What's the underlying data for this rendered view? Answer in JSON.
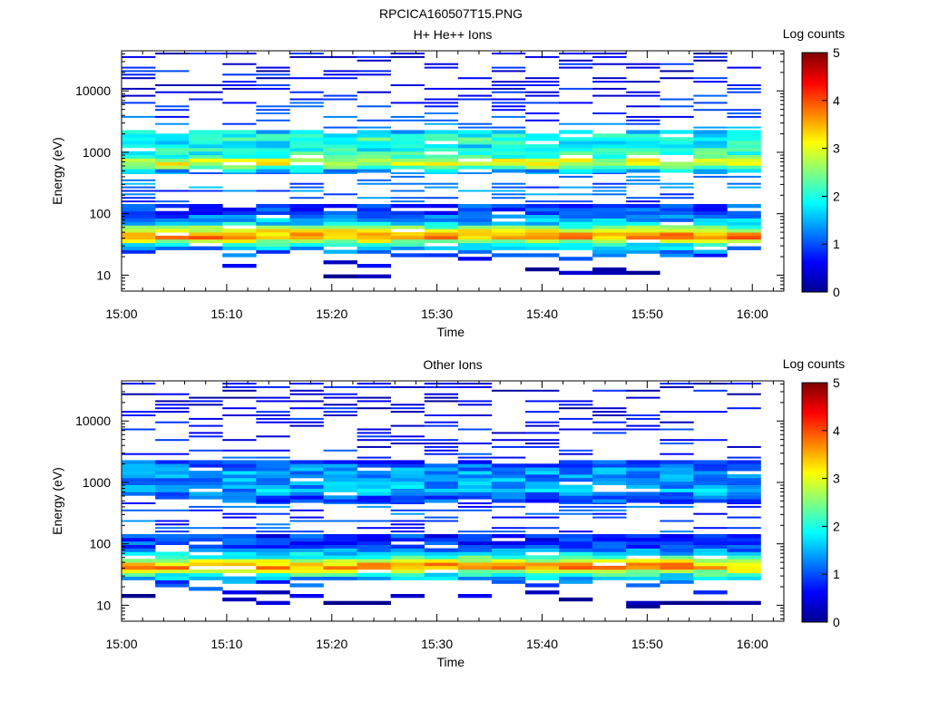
{
  "figure_title": "RPCICA160507T15.PNG",
  "colors": {
    "colormap": [
      "#00008f",
      "#0000ff",
      "#0080ff",
      "#00ffff",
      "#80ff80",
      "#ffff00",
      "#ff8000",
      "#ff0000",
      "#800000"
    ]
  },
  "chart_data": [
    {
      "type": "heatmap",
      "title": "H+ He++ Ions",
      "xlabel": "Time",
      "ylabel": "Energy (eV)",
      "x_ticks": [
        "15:00",
        "15:10",
        "15:20",
        "15:30",
        "15:40",
        "15:50",
        "16:00"
      ],
      "y_ticks": [
        "10",
        "100",
        "1000",
        "10000"
      ],
      "y_scale": "log",
      "ylim": [
        5.5,
        45000
      ],
      "x_range_minutes": [
        0,
        63
      ],
      "colorbar": {
        "label": "Log counts",
        "ticks": [
          "0",
          "1",
          "2",
          "3",
          "4",
          "5"
        ],
        "range": [
          0,
          5
        ]
      },
      "time_bins_minutes": [
        0.0,
        3.2,
        6.4,
        9.6,
        12.8,
        16.0,
        19.2,
        22.4,
        25.6,
        28.8,
        32.0,
        35.2,
        38.4,
        41.6,
        44.8,
        48.0,
        51.2,
        54.4,
        57.6
      ],
      "energy_profile": [
        {
          "e": 11,
          "v": 0
        },
        {
          "e": 25,
          "v": 1.2
        },
        {
          "e": 30,
          "v": 1.6
        },
        {
          "e": 35,
          "v": 2.6
        },
        {
          "e": 42,
          "v": 3.8
        },
        {
          "e": 50,
          "v": 3.4
        },
        {
          "e": 60,
          "v": 2.4
        },
        {
          "e": 75,
          "v": 1.5
        },
        {
          "e": 95,
          "v": 1.1
        },
        {
          "e": 120,
          "v": 0.9
        },
        {
          "e": 500,
          "v": 1.5
        },
        {
          "e": 600,
          "v": 2.6
        },
        {
          "e": 700,
          "v": 3.2
        },
        {
          "e": 850,
          "v": 2.2
        },
        {
          "e": 1400,
          "v": 1.8
        },
        {
          "e": 1700,
          "v": 2.2
        },
        {
          "e": 3000,
          "v": 0.9
        },
        {
          "e": 12000,
          "v": 0.6
        },
        {
          "e": 25000,
          "v": 0.5
        }
      ]
    },
    {
      "type": "heatmap",
      "title": "Other Ions",
      "xlabel": "Time",
      "ylabel": "Energy (eV)",
      "x_ticks": [
        "15:00",
        "15:10",
        "15:20",
        "15:30",
        "15:40",
        "15:50",
        "16:00"
      ],
      "y_ticks": [
        "10",
        "100",
        "1000",
        "10000"
      ],
      "y_scale": "log",
      "ylim": [
        5.5,
        45000
      ],
      "x_range_minutes": [
        0,
        63
      ],
      "colorbar": {
        "label": "Log counts",
        "ticks": [
          "0",
          "1",
          "2",
          "3",
          "4",
          "5"
        ],
        "range": [
          0,
          5
        ]
      },
      "time_bins_minutes": [
        0.0,
        3.2,
        6.4,
        9.6,
        12.8,
        16.0,
        19.2,
        22.4,
        25.6,
        28.8,
        32.0,
        35.2,
        38.4,
        41.6,
        44.8,
        48.0,
        51.2,
        54.4,
        57.6
      ],
      "energy_profile": [
        {
          "e": 11,
          "v": 0
        },
        {
          "e": 25,
          "v": 1.2
        },
        {
          "e": 30,
          "v": 1.7
        },
        {
          "e": 35,
          "v": 2.6
        },
        {
          "e": 42,
          "v": 3.7
        },
        {
          "e": 50,
          "v": 3.3
        },
        {
          "e": 60,
          "v": 2.2
        },
        {
          "e": 75,
          "v": 1.4
        },
        {
          "e": 95,
          "v": 1.0
        },
        {
          "e": 120,
          "v": 0.8
        },
        {
          "e": 600,
          "v": 1.1
        },
        {
          "e": 700,
          "v": 1.5
        },
        {
          "e": 1600,
          "v": 1.3
        },
        {
          "e": 3000,
          "v": 0.7
        },
        {
          "e": 22000,
          "v": 0.5
        }
      ]
    }
  ]
}
